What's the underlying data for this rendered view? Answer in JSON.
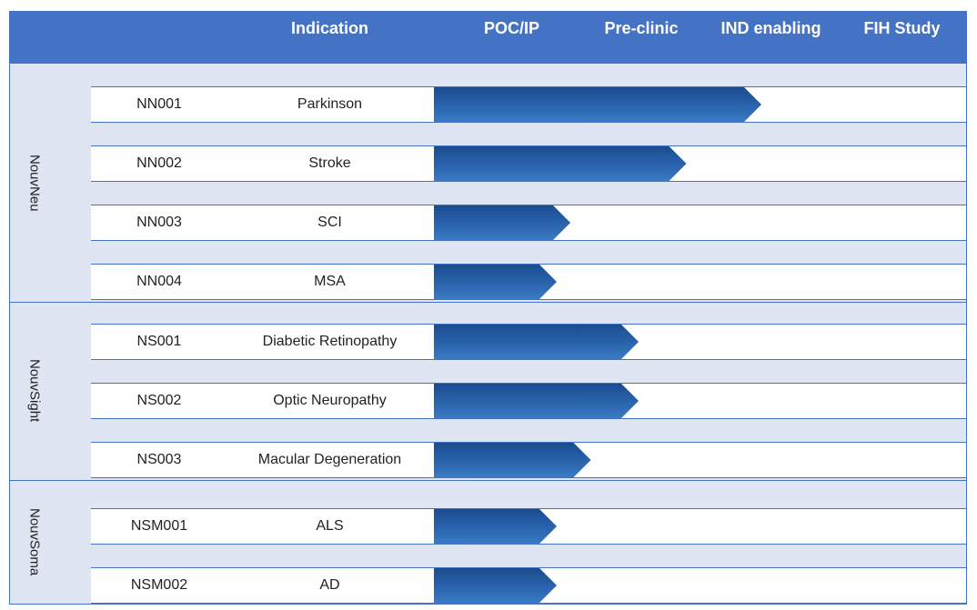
{
  "colors": {
    "header": "#4472c4",
    "band": "#dfe5f2",
    "arrow_dark": "#1a4c8f",
    "arrow_light": "#2f6db8"
  },
  "header": {
    "indication": "Indication",
    "stages": [
      "POC/IP",
      "Pre-clinic",
      "IND enabling",
      "FIH Study"
    ]
  },
  "groups": [
    {
      "name": "NouvNeu"
    },
    {
      "name": "NouvSight"
    },
    {
      "name": "NouvSoma"
    }
  ],
  "chart_data": {
    "type": "bar",
    "orientation": "horizontal",
    "stages": [
      "POC/IP",
      "Pre-clinic",
      "IND enabling",
      "FIH Study"
    ],
    "categories": [
      "NN001",
      "NN002",
      "NN003",
      "NN004",
      "NS001",
      "NS002",
      "NS003",
      "NSM001",
      "NSM002"
    ],
    "rows": [
      {
        "group": "NouvNeu",
        "code": "NN001",
        "indication": "Parkinson",
        "progress": 2.4
      },
      {
        "group": "NouvNeu",
        "code": "NN002",
        "indication": "Stroke",
        "progress": 1.85
      },
      {
        "group": "NouvNeu",
        "code": "NN003",
        "indication": "SCI",
        "progress": 1.0
      },
      {
        "group": "NouvNeu",
        "code": "NN004",
        "indication": "MSA",
        "progress": 0.9
      },
      {
        "group": "NouvSight",
        "code": "NS001",
        "indication": "Diabetic Retinopathy",
        "progress": 1.5
      },
      {
        "group": "NouvSight",
        "code": "NS002",
        "indication": "Optic Neuropathy",
        "progress": 1.5
      },
      {
        "group": "NouvSight",
        "code": "NS003",
        "indication": "Macular Degeneration",
        "progress": 1.15
      },
      {
        "group": "NouvSoma",
        "code": "NSM001",
        "indication": "ALS",
        "progress": 0.9
      },
      {
        "group": "NouvSoma",
        "code": "NSM002",
        "indication": "AD",
        "progress": 0.9
      }
    ]
  }
}
